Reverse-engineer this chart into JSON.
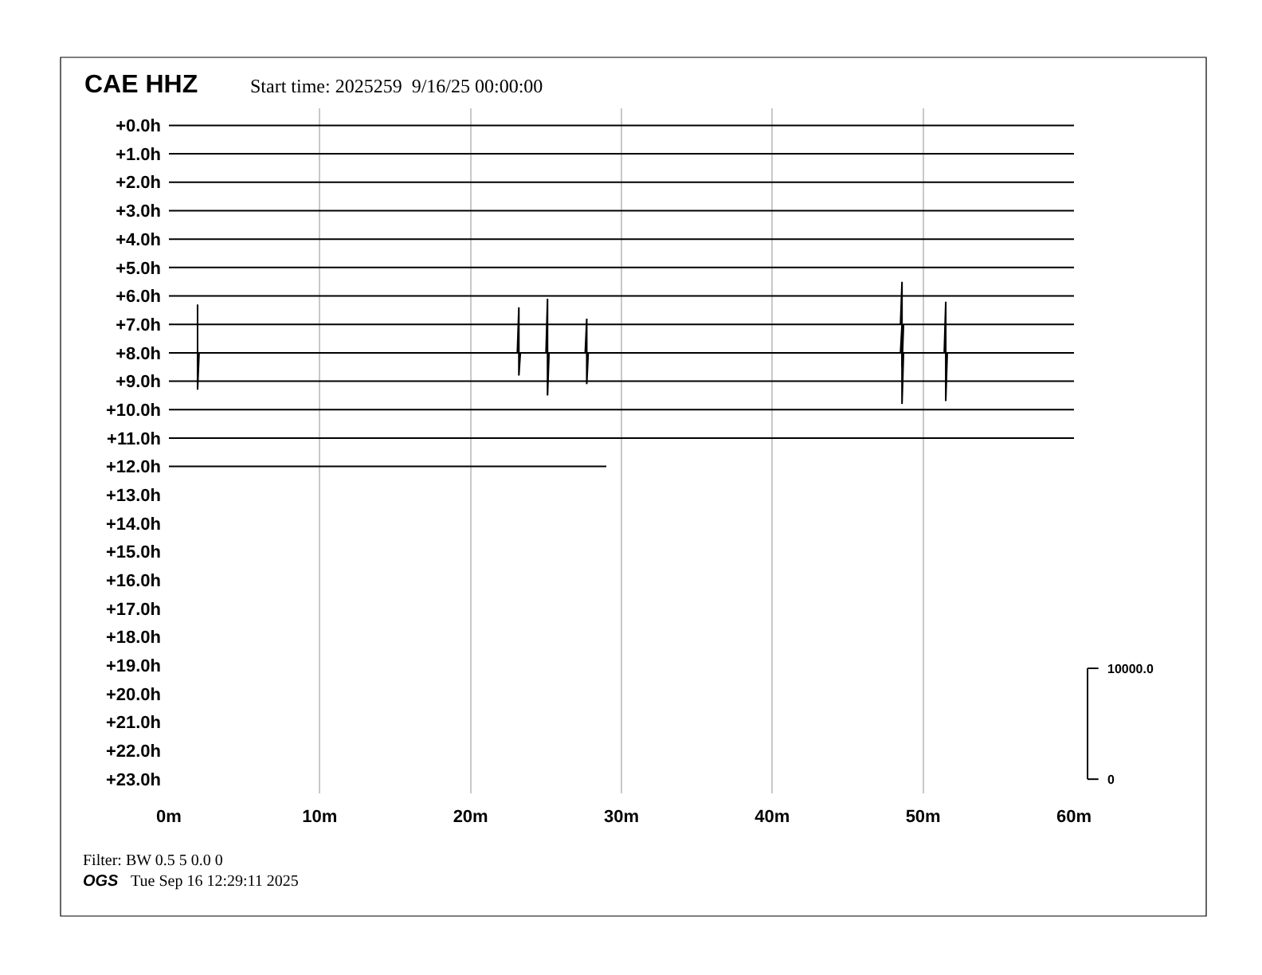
{
  "chart_data": {
    "type": "line",
    "title": "CAE HHZ",
    "subtitle": "Start time: 2025259  9/16/25 00:00:00",
    "annotations": [
      "Filter: BW 0.5 5 0.0 0",
      "OGS",
      "Tue Sep 16 12:29:11 2025"
    ],
    "xlim": [
      0,
      60
    ],
    "xticks": [
      {
        "value": 0,
        "label": "0m"
      },
      {
        "value": 10,
        "label": "10m"
      },
      {
        "value": 20,
        "label": "20m"
      },
      {
        "value": 30,
        "label": "30m"
      },
      {
        "value": 40,
        "label": "40m"
      },
      {
        "value": 50,
        "label": "50m"
      },
      {
        "value": 60,
        "label": "60m"
      }
    ],
    "ylim": [
      23.5,
      -0.6
    ],
    "yticks": [
      {
        "value": 0,
        "label": "+0.0h"
      },
      {
        "value": 1,
        "label": "+1.0h"
      },
      {
        "value": 2,
        "label": "+2.0h"
      },
      {
        "value": 3,
        "label": "+3.0h"
      },
      {
        "value": 4,
        "label": "+4.0h"
      },
      {
        "value": 5,
        "label": "+5.0h"
      },
      {
        "value": 6,
        "label": "+6.0h"
      },
      {
        "value": 7,
        "label": "+7.0h"
      },
      {
        "value": 8,
        "label": "+8.0h"
      },
      {
        "value": 9,
        "label": "+9.0h"
      },
      {
        "value": 10,
        "label": "+10.0h"
      },
      {
        "value": 11,
        "label": "+11.0h"
      },
      {
        "value": 12,
        "label": "+12.0h"
      },
      {
        "value": 13,
        "label": "+13.0h"
      },
      {
        "value": 14,
        "label": "+14.0h"
      },
      {
        "value": 15,
        "label": "+15.0h"
      },
      {
        "value": 16,
        "label": "+16.0h"
      },
      {
        "value": 17,
        "label": "+17.0h"
      },
      {
        "value": 18,
        "label": "+18.0h"
      },
      {
        "value": 19,
        "label": "+19.0h"
      },
      {
        "value": 20,
        "label": "+20.0h"
      },
      {
        "value": 21,
        "label": "+21.0h"
      },
      {
        "value": 22,
        "label": "+22.0h"
      },
      {
        "value": 23,
        "label": "+23.0h"
      }
    ],
    "y2lim": [
      -1282,
      60510
    ],
    "y2ticks": [
      0,
      {
        "value": 10000,
        "label": "10000.0"
      }
    ],
    "grid": "x",
    "marker": "none",
    "line_style": "solid",
    "series": [
      {
        "color": "#000000",
        "x": [
          0,
          60
        ],
        "values": [
          0,
          0
        ]
      },
      {
        "color": "#000000",
        "x": [
          0,
          60
        ],
        "values": [
          1,
          1
        ]
      },
      {
        "color": "#000000",
        "x": [
          0,
          60
        ],
        "values": [
          2,
          2
        ]
      },
      {
        "color": "#000000",
        "x": [
          0,
          60
        ],
        "values": [
          3,
          3
        ]
      },
      {
        "color": "#000000",
        "x": [
          0,
          60
        ],
        "values": [
          4,
          4
        ]
      },
      {
        "color": "#000000",
        "x": [
          0,
          60
        ],
        "values": [
          5,
          5
        ]
      },
      {
        "color": "#000000",
        "x": [
          0,
          60
        ],
        "values": [
          6,
          6
        ]
      },
      {
        "color": "#000000",
        "x": [
          0,
          48.5,
          48.6,
          48.6,
          48.7,
          60
        ],
        "values": [
          7,
          7,
          5.5,
          8.5,
          7,
          7
        ]
      },
      {
        "color": "#000000",
        "x": [
          0,
          1.9,
          1.9,
          1.9,
          2.0,
          23.1,
          23.2,
          23.2,
          23.3,
          25.0,
          25.1,
          25.1,
          25.2,
          27.6,
          27.7,
          27.7,
          27.8,
          48.5,
          48.6,
          48.6,
          48.7,
          51.4,
          51.5,
          51.5,
          51.6,
          60
        ],
        "values": [
          8,
          8,
          6.3,
          9.3,
          8,
          8,
          6.4,
          8.8,
          8,
          8,
          6.1,
          9.5,
          8,
          8,
          6.8,
          9.1,
          8,
          8,
          7.0,
          9.8,
          8,
          8,
          6.2,
          9.7,
          8,
          8
        ]
      },
      {
        "color": "#000000",
        "x": [
          0,
          60
        ],
        "values": [
          9,
          9
        ]
      },
      {
        "color": "#000000",
        "x": [
          0,
          60
        ],
        "values": [
          10,
          10
        ]
      },
      {
        "color": "#000000",
        "x": [
          0,
          60
        ],
        "values": [
          11,
          11
        ]
      },
      {
        "color": "#000000",
        "x": [
          0,
          29
        ],
        "values": [
          12,
          12
        ]
      }
    ]
  }
}
